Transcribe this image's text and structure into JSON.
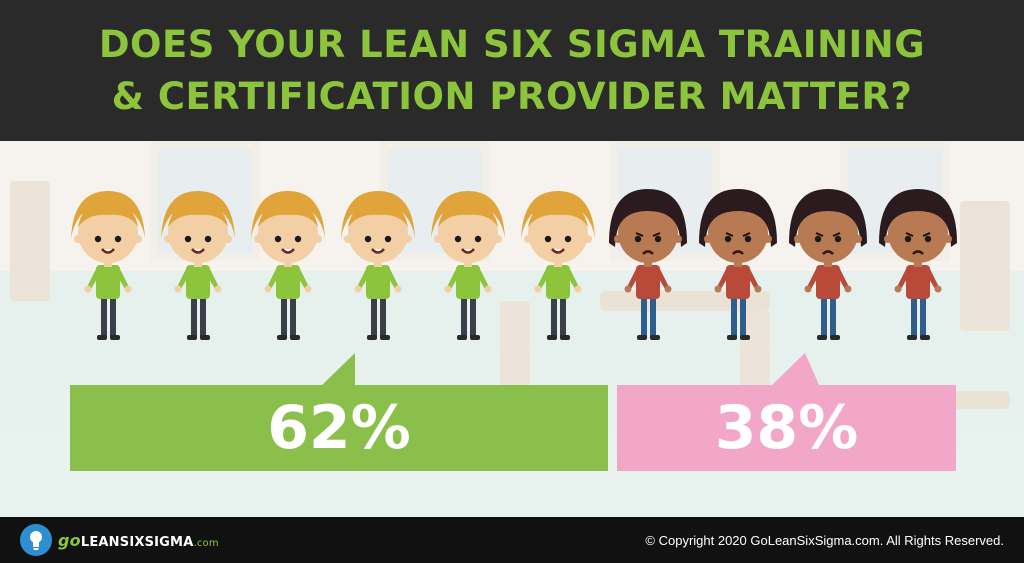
{
  "header": {
    "line1": "DOES YOUR LEAN SIX SIGMA TRAINING",
    "line2": "& CERTIFICATION PROVIDER MATTER?"
  },
  "people": {
    "happy_count": 6,
    "unhappy_count": 4,
    "happy_colors": {
      "hair": "#e0a43a",
      "shirt": "#8cc43c",
      "skin": "#f3cfa6",
      "pants": "#3a3f4a"
    },
    "unhappy_colors": {
      "hair": "#2b1a1e",
      "shirt": "#b94a3a",
      "skin": "#b87a52",
      "pants": "#2f5e8c"
    }
  },
  "stats": {
    "yes_value": "62%",
    "no_value": "38%",
    "yes_color": "#8bbf4b",
    "no_color": "#f2a7c9"
  },
  "footer": {
    "logo_go": "go",
    "logo_main": "LEANSIXSIGMA",
    "logo_suffix": ".com",
    "copyright": "© Copyright 2020 GoLeanSixSigma.com. All Rights Reserved."
  }
}
